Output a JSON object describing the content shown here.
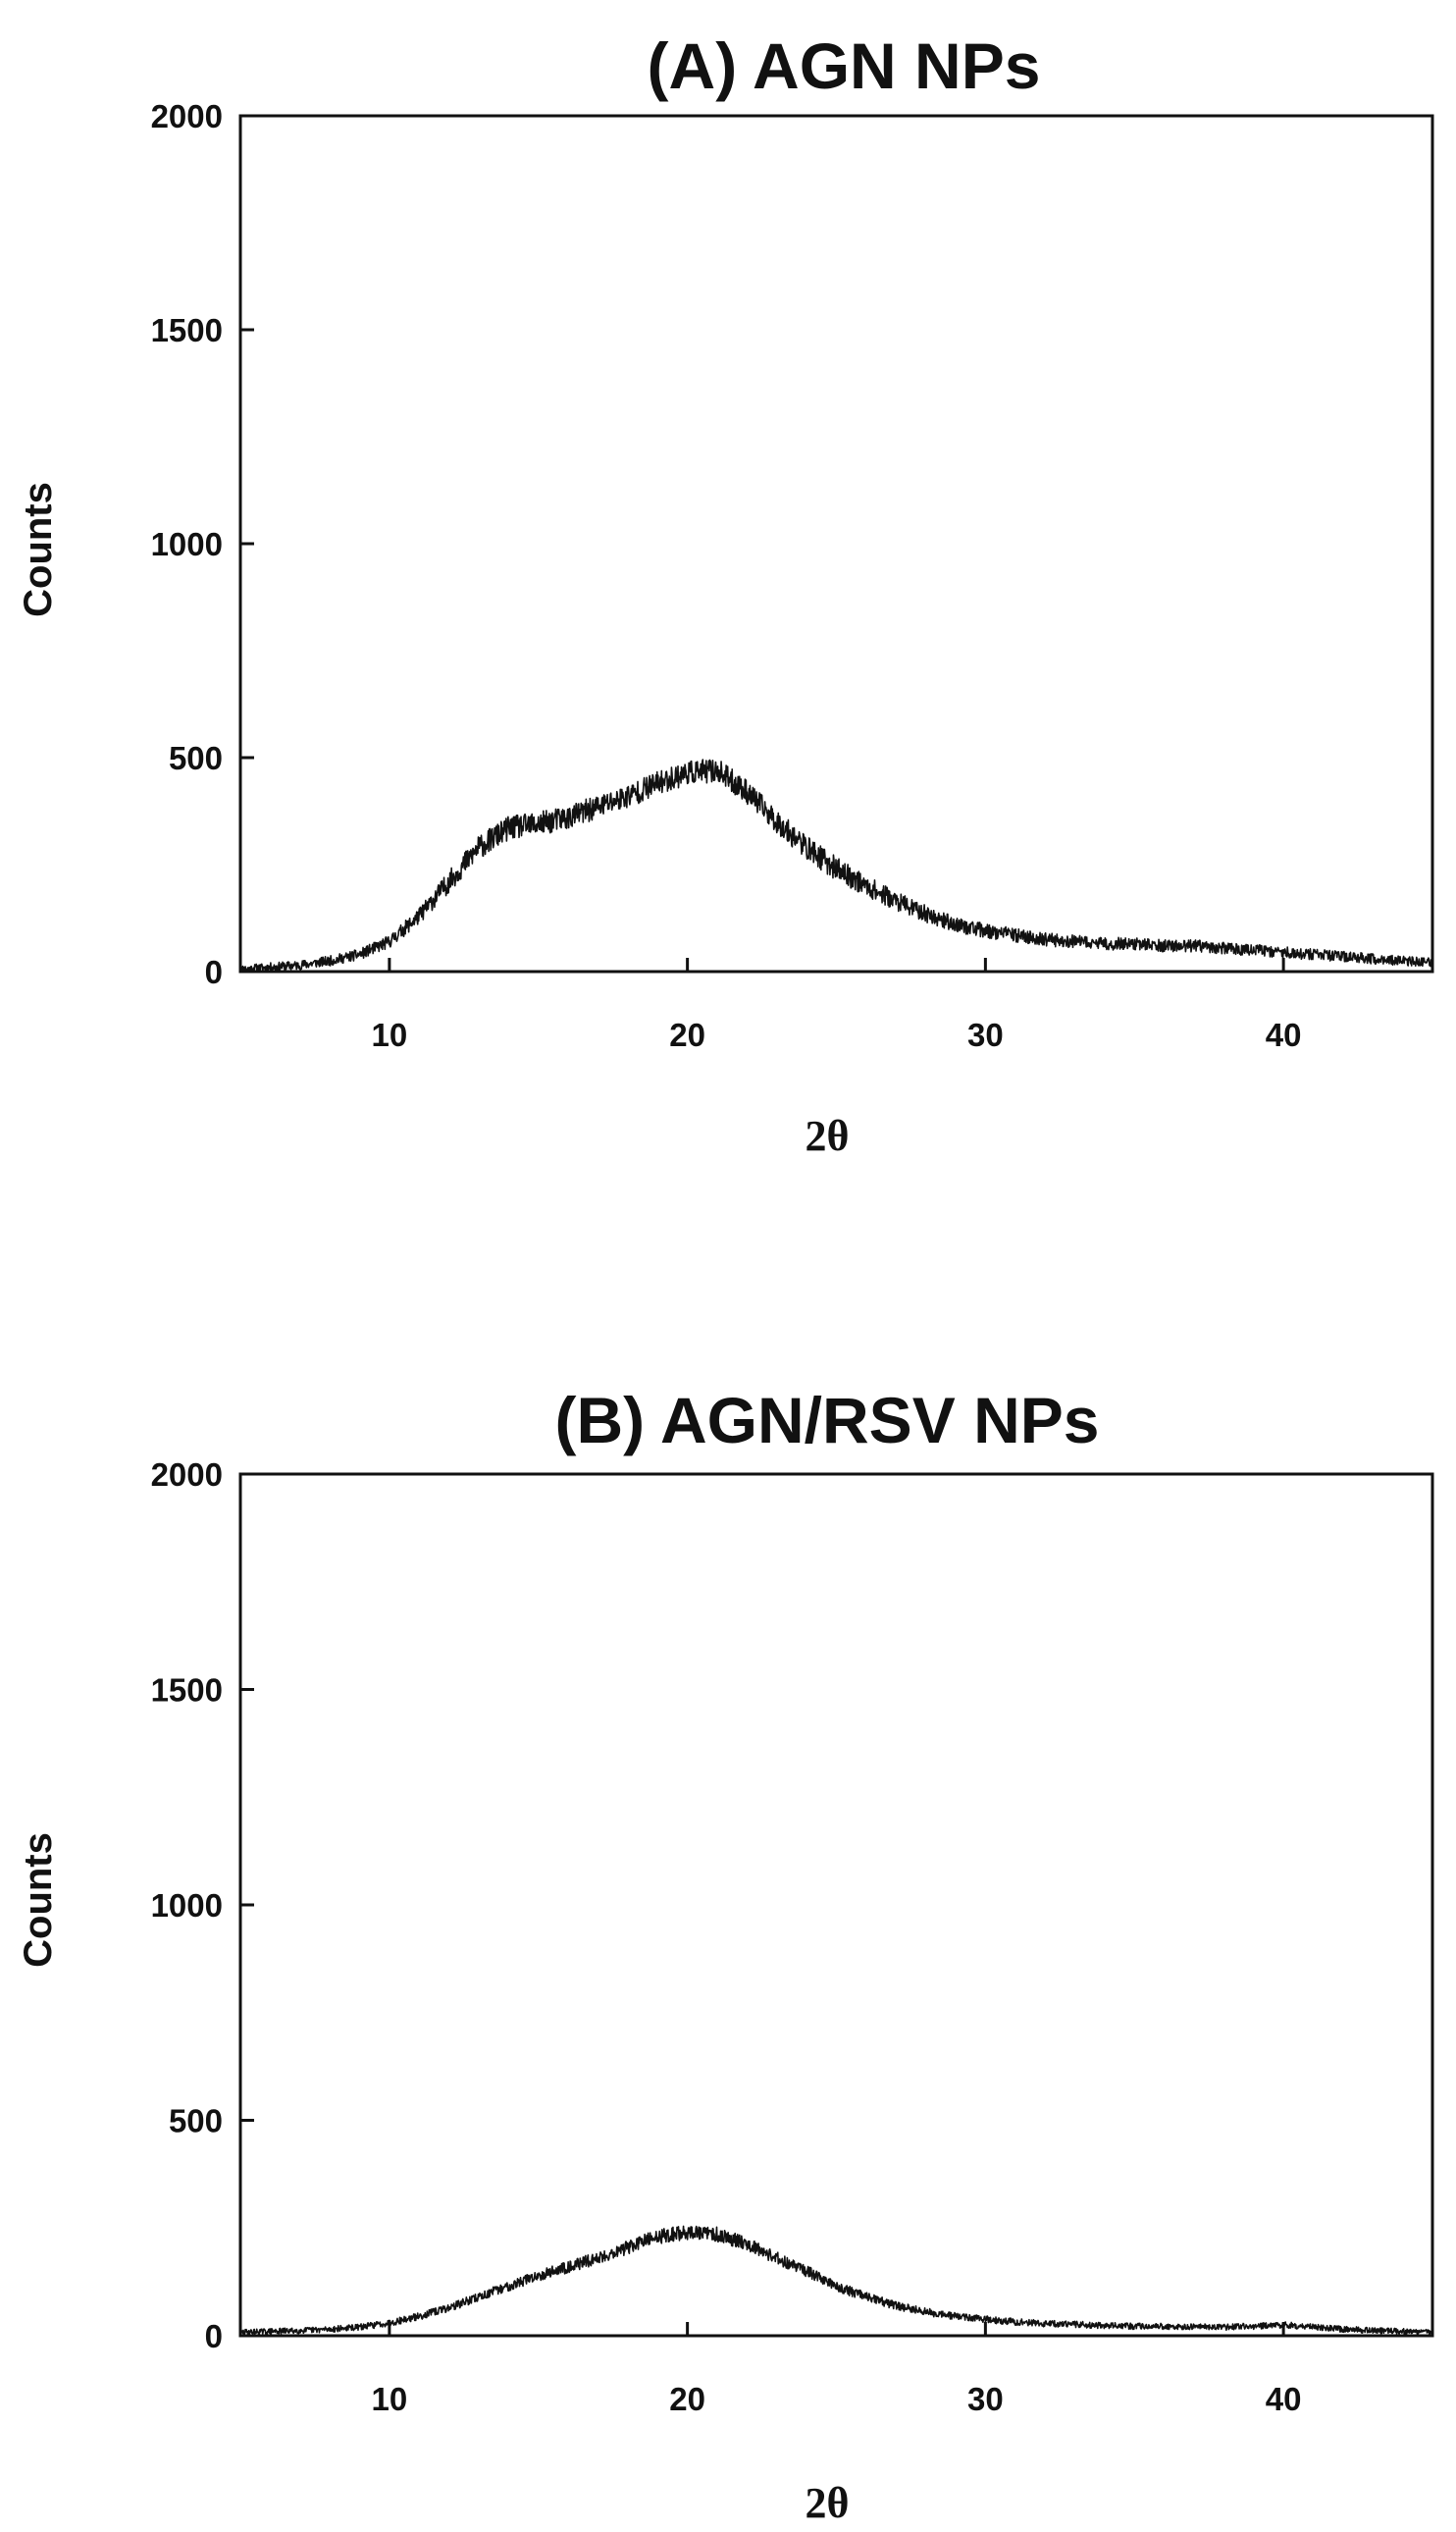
{
  "chart_data": [
    {
      "type": "line",
      "title": "(A) AGN NPs",
      "xlabel": "2θ",
      "ylabel": "Counts",
      "xlim": [
        5,
        45
      ],
      "ylim": [
        0,
        2000
      ],
      "x_ticks": [
        10,
        20,
        30,
        40
      ],
      "y_ticks": [
        0,
        500,
        1000,
        1500,
        2000
      ],
      "grid": false,
      "legend": "none",
      "series": [
        {
          "color": "#111111",
          "x": [
            5,
            6,
            7,
            8,
            9,
            10,
            11,
            12,
            13,
            14,
            15,
            16,
            17,
            18,
            19,
            20,
            21,
            22,
            23,
            24,
            25,
            26,
            27,
            28,
            29,
            30,
            31,
            32,
            33,
            34,
            35,
            36,
            37,
            38,
            39,
            40,
            41,
            42,
            43,
            44,
            45
          ],
          "y": [
            5,
            10,
            15,
            25,
            40,
            70,
            130,
            210,
            290,
            335,
            345,
            360,
            385,
            410,
            440,
            465,
            470,
            420,
            350,
            290,
            240,
            200,
            165,
            135,
            110,
            95,
            85,
            75,
            70,
            65,
            65,
            60,
            60,
            55,
            50,
            45,
            40,
            35,
            30,
            25,
            20
          ],
          "noise": 28
        }
      ]
    },
    {
      "type": "line",
      "title": "(B) AGN/RSV NPs",
      "xlabel": "2θ",
      "ylabel": "Counts",
      "xlim": [
        5,
        45
      ],
      "ylim": [
        0,
        2000
      ],
      "x_ticks": [
        10,
        20,
        30,
        40
      ],
      "y_ticks": [
        0,
        500,
        1000,
        1500,
        2000
      ],
      "grid": false,
      "legend": "none",
      "series": [
        {
          "color": "#111111",
          "x": [
            5,
            6,
            7,
            8,
            9,
            10,
            11,
            12,
            13,
            14,
            15,
            16,
            17,
            18,
            19,
            20,
            21,
            22,
            23,
            24,
            25,
            26,
            27,
            28,
            29,
            30,
            31,
            32,
            33,
            34,
            35,
            36,
            37,
            38,
            39,
            40,
            41,
            42,
            43,
            44,
            45
          ],
          "y": [
            8,
            10,
            12,
            15,
            20,
            30,
            45,
            65,
            90,
            115,
            140,
            160,
            180,
            205,
            230,
            240,
            235,
            215,
            180,
            150,
            115,
            90,
            70,
            55,
            45,
            38,
            32,
            28,
            26,
            24,
            22,
            22,
            20,
            20,
            22,
            25,
            20,
            15,
            12,
            10,
            8
          ],
          "noise": 18
        }
      ]
    }
  ]
}
